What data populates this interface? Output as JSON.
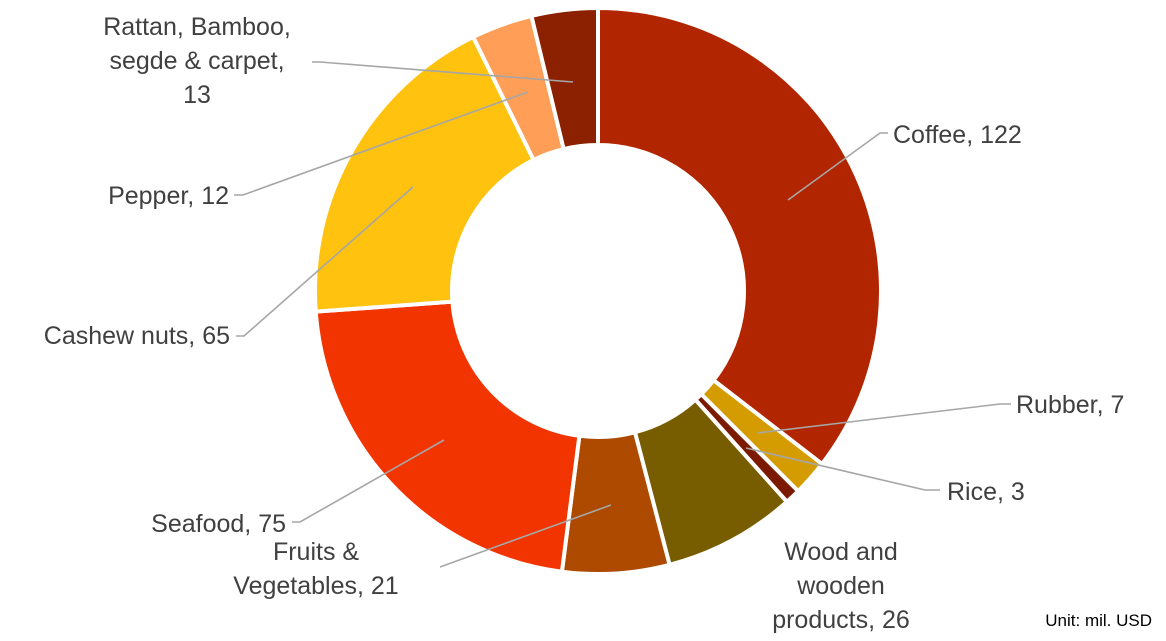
{
  "chart_data": {
    "type": "pie",
    "donut": true,
    "title": "",
    "legend": "none",
    "unit": "Unit: mil. USD",
    "slices": [
      {
        "name": "Coffee",
        "value": 122,
        "color": "#b12500",
        "lines": [
          "Coffee,  122"
        ]
      },
      {
        "name": "Rubber",
        "value": 7,
        "color": "#d49c00",
        "lines": [
          "Rubber,  7"
        ]
      },
      {
        "name": "Rice",
        "value": 3,
        "color": "#7b1a00",
        "lines": [
          "Rice,  3"
        ]
      },
      {
        "name": "Wood and wooden products",
        "value": 26,
        "color": "#785c00",
        "lines": [
          "Wood and",
          "wooden",
          "products,  26"
        ]
      },
      {
        "name": "Fruits & Vegetables",
        "value": 21,
        "color": "#ad4a00",
        "lines": [
          "Fruits &",
          "Vegetables,  21"
        ]
      },
      {
        "name": "Seafood",
        "value": 75,
        "color": "#f23400",
        "lines": [
          "Seafood,  75"
        ]
      },
      {
        "name": "Cashew nuts",
        "value": 65,
        "color": "#fec20f",
        "lines": [
          "Cashew nuts,  65"
        ]
      },
      {
        "name": "Pepper",
        "value": 12,
        "color": "#ff9e57",
        "lines": [
          "Pepper,  12"
        ]
      },
      {
        "name": "Rattan, Bamboo, segde & carpet",
        "value": 13,
        "color": "#8b2100",
        "lines": [
          "Rattan, Bamboo,",
          "segde & carpet,",
          "13"
        ]
      }
    ]
  }
}
